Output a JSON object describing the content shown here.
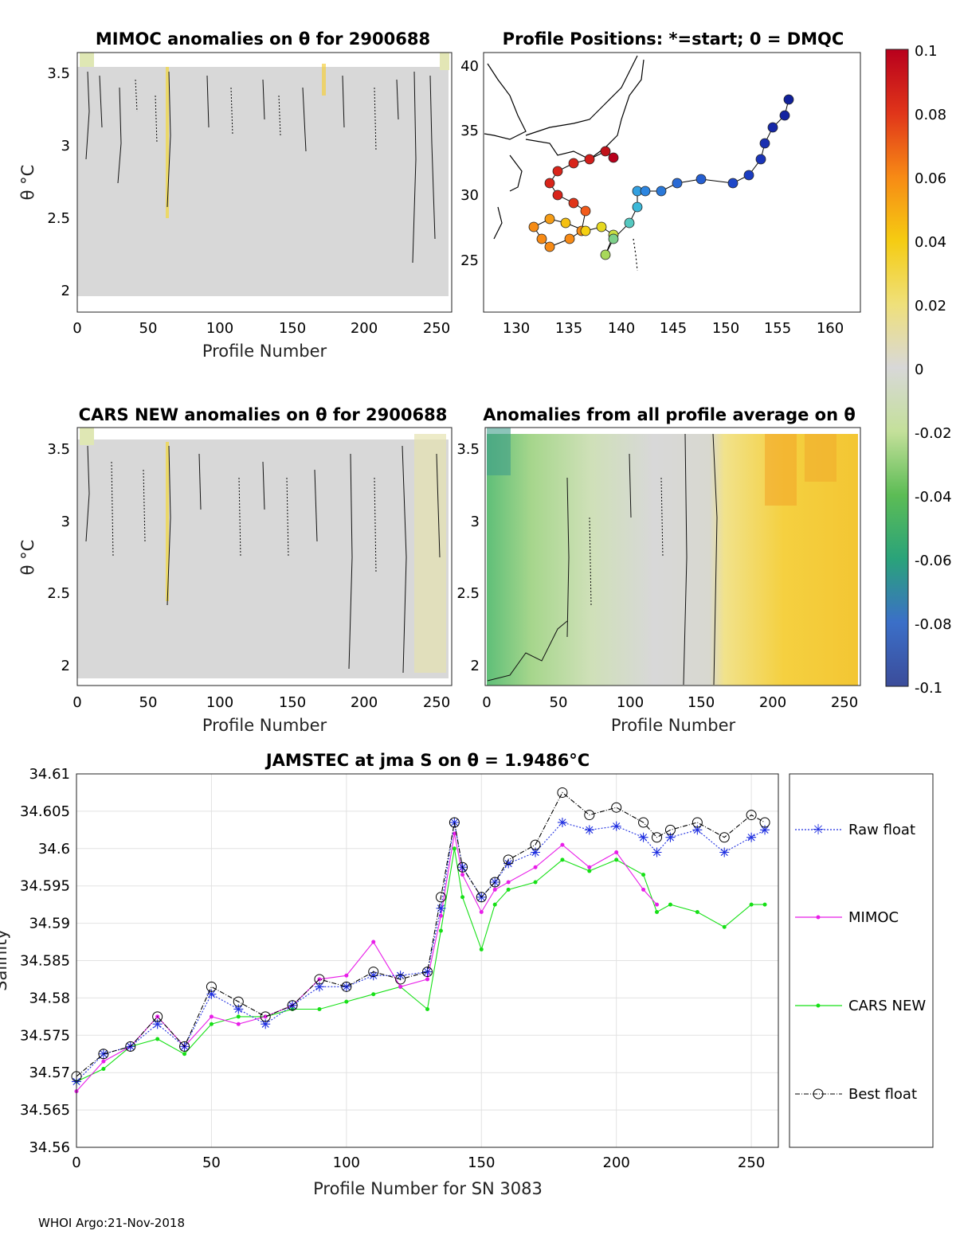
{
  "footer": "WHOI Argo:21-Nov-2018",
  "colorbar": {
    "ticks": [
      "0.1",
      "0.08",
      "0.06",
      "0.04",
      "0.02",
      "0",
      "-0.02",
      "-0.04",
      "-0.06",
      "-0.08",
      "-0.1"
    ],
    "range": [
      -0.1,
      0.1
    ]
  },
  "panels": {
    "mimoc": {
      "title": "MIMOC anomalies on θ  for 2900688",
      "xlabel": "Profile Number",
      "ylabel": "θ °C",
      "xticks": [
        "0",
        "50",
        "100",
        "150",
        "200",
        "250"
      ],
      "yticks": [
        "3.5",
        "3",
        "2.5",
        "2"
      ]
    },
    "positions": {
      "title": "Profile Positions: *=start; 0 = DMQC",
      "xticks": [
        "130",
        "135",
        "140",
        "145",
        "150",
        "155",
        "160"
      ],
      "yticks": [
        "40",
        "35",
        "30",
        "25"
      ]
    },
    "cars": {
      "title": "CARS NEW anomalies on θ for 2900688",
      "xlabel": "Profile Number",
      "ylabel": "θ °C",
      "xticks": [
        "0",
        "50",
        "100",
        "150",
        "200",
        "250"
      ],
      "yticks": [
        "3.5",
        "3",
        "2.5",
        "2"
      ]
    },
    "allavg": {
      "title": "Anomalies from all profile average on θ",
      "xlabel": "Profile Number",
      "xticks": [
        "0",
        "50",
        "100",
        "150",
        "200",
        "250"
      ],
      "yticks": [
        "3.5",
        "3",
        "2.5",
        "2"
      ]
    }
  },
  "chart_data": {
    "type": "line",
    "title": "JAMSTEC at jma S on θ = 1.9486°C",
    "xlabel": "Profile Number for SN 3083",
    "ylabel": "Salinity",
    "xlim": [
      0,
      260
    ],
    "ylim": [
      34.56,
      34.61
    ],
    "xticks": [
      "0",
      "50",
      "100",
      "150",
      "200",
      "250"
    ],
    "yticks": [
      "34.61",
      "34.605",
      "34.6",
      "34.595",
      "34.59",
      "34.585",
      "34.58",
      "34.575",
      "34.57",
      "34.565",
      "34.56"
    ],
    "x": [
      0,
      10,
      20,
      30,
      40,
      50,
      60,
      70,
      80,
      90,
      100,
      110,
      120,
      130,
      135,
      140,
      143,
      150,
      155,
      160,
      170,
      180,
      190,
      200,
      210,
      215,
      220,
      230,
      240,
      250,
      255
    ],
    "series": [
      {
        "name": "Raw float",
        "values": [
          34.5688,
          34.5725,
          34.5735,
          34.5765,
          34.5735,
          34.5805,
          34.5785,
          34.5765,
          34.579,
          34.5815,
          34.5815,
          34.583,
          34.583,
          34.5835,
          34.592,
          34.6035,
          34.5975,
          34.5935,
          34.5955,
          34.598,
          34.5995,
          34.6035,
          34.6025,
          34.603,
          34.6015,
          34.5995,
          34.6015,
          34.6025,
          34.5995,
          34.6015,
          34.6025
        ]
      },
      {
        "name": "MIMOC",
        "values": [
          34.5675,
          34.5715,
          34.5735,
          34.5775,
          34.5735,
          34.5775,
          34.5765,
          34.5775,
          34.579,
          34.5825,
          34.583,
          34.5875,
          34.5815,
          34.5825,
          34.591,
          34.602,
          34.5965,
          34.5915,
          34.5945,
          34.5955,
          34.5975,
          34.6005,
          34.5975,
          34.5995,
          34.5945,
          34.5925,
          null,
          null,
          null,
          null,
          null
        ]
      },
      {
        "name": "CARS NEW",
        "values": [
          34.5688,
          34.5705,
          34.5735,
          34.5745,
          34.5725,
          34.5765,
          34.5775,
          34.5775,
          34.5785,
          34.5785,
          34.5795,
          34.5805,
          34.5815,
          34.5785,
          34.589,
          34.6,
          34.5935,
          34.5865,
          34.5925,
          34.5945,
          34.5955,
          34.5985,
          34.597,
          34.5985,
          34.5965,
          34.5915,
          34.5925,
          34.5915,
          34.5895,
          34.5925,
          34.5925
        ]
      },
      {
        "name": "Best float",
        "values": [
          34.5695,
          34.5725,
          34.5735,
          34.5775,
          34.5735,
          34.5815,
          34.5795,
          34.5775,
          34.579,
          34.5825,
          34.5815,
          34.5835,
          34.5825,
          34.5835,
          34.5935,
          34.6035,
          34.5975,
          34.5935,
          34.5955,
          34.5985,
          34.6005,
          34.6075,
          34.6045,
          34.6055,
          34.6035,
          34.6015,
          34.6025,
          34.6035,
          34.6015,
          34.6045,
          34.6035
        ]
      }
    ]
  }
}
